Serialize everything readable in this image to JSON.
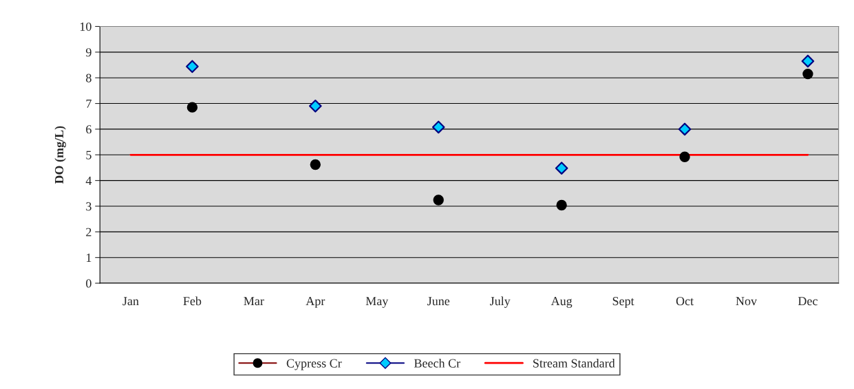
{
  "chart_data": {
    "type": "scatter",
    "ylabel": "DO (mg/L)",
    "categories": [
      "Jan",
      "Feb",
      "Mar",
      "Apr",
      "May",
      "June",
      "July",
      "Aug",
      "Sept",
      "Oct",
      "Nov",
      "Dec"
    ],
    "series": [
      {
        "name": "Cypress Cr",
        "color": "#000000",
        "marker": "circle",
        "values": [
          null,
          6.85,
          null,
          4.62,
          null,
          3.24,
          null,
          3.04,
          null,
          4.92,
          null,
          8.15
        ]
      },
      {
        "name": "Beech Cr",
        "color": "#00ccff",
        "marker": "diamond",
        "values": [
          null,
          8.44,
          null,
          6.9,
          null,
          6.08,
          null,
          4.48,
          null,
          6.0,
          null,
          8.65
        ]
      },
      {
        "name": "Stream Standard",
        "type": "line",
        "color": "#ff0000",
        "marker": "none",
        "values": [
          5,
          5,
          5,
          5,
          5,
          5,
          5,
          5,
          5,
          5,
          5,
          5
        ]
      }
    ],
    "ylim": [
      0,
      10
    ],
    "yticks": [
      0,
      1,
      2,
      3,
      4,
      5,
      6,
      7,
      8,
      9,
      10
    ],
    "grid": "y",
    "legend": "bottom"
  }
}
